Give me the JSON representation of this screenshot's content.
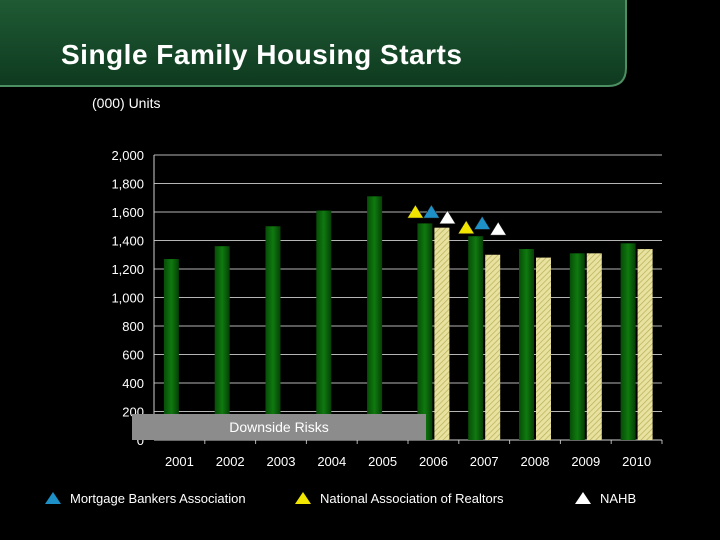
{
  "title": "Single Family Housing Starts",
  "units_label": "(000) Units",
  "colors": {
    "actual_bar": "#0f7a0f",
    "forecast_bar": "#e8e2a0",
    "mortgage_bankers": "#1e90c8",
    "realtors": "#f2e600",
    "nahb": "#ffffff",
    "downside_box": "#8c8c8c"
  },
  "chart_data": {
    "type": "bar",
    "title": "Single Family Housing Starts",
    "ylabel": "(000) Units",
    "xlabel": "",
    "ylim": [
      0,
      2000
    ],
    "yticks": [
      0,
      200,
      400,
      600,
      800,
      1000,
      1200,
      1400,
      1600,
      1800,
      2000
    ],
    "ytick_labels": [
      "0",
      "200",
      "400",
      "600",
      "800",
      "1,000",
      "1,200",
      "1,400",
      "1,600",
      "1,800",
      "2,000"
    ],
    "categories": [
      "2001",
      "2002",
      "2003",
      "2004",
      "2005",
      "2006",
      "2007",
      "2008",
      "2009",
      "2010"
    ],
    "series": [
      {
        "values": [
          1270,
          1360,
          1500,
          1610,
          1710,
          1520,
          1430,
          1340,
          1310,
          1380
        ]
      },
      {
        "values": [
          null,
          null,
          null,
          null,
          null,
          1490,
          1300,
          1280,
          1310,
          1340
        ]
      }
    ],
    "markers": [
      {
        "name": "Mortgage Bankers Association",
        "icon": "blue-triangle",
        "points": [
          {
            "x": "2006",
            "y": 1600
          },
          {
            "x": "2007",
            "y": 1520
          }
        ]
      },
      {
        "name": "National Association of Realtors",
        "icon": "yellow-triangle",
        "points": [
          {
            "x": "2006",
            "y": 1600
          },
          {
            "x": "2007",
            "y": 1490
          }
        ]
      },
      {
        "name": "NAHB",
        "icon": "white-triangle",
        "points": [
          {
            "x": "2006",
            "y": 1560
          },
          {
            "x": "2007",
            "y": 1480
          }
        ]
      }
    ],
    "annotation": "Downside Risks",
    "grid": true
  },
  "legend": [
    {
      "label": "Mortgage Bankers Association",
      "icon": "blue-triangle-icon"
    },
    {
      "label": "National Association of Realtors",
      "icon": "yellow-triangle-icon"
    },
    {
      "label": "NAHB",
      "icon": "white-triangle-icon"
    }
  ]
}
